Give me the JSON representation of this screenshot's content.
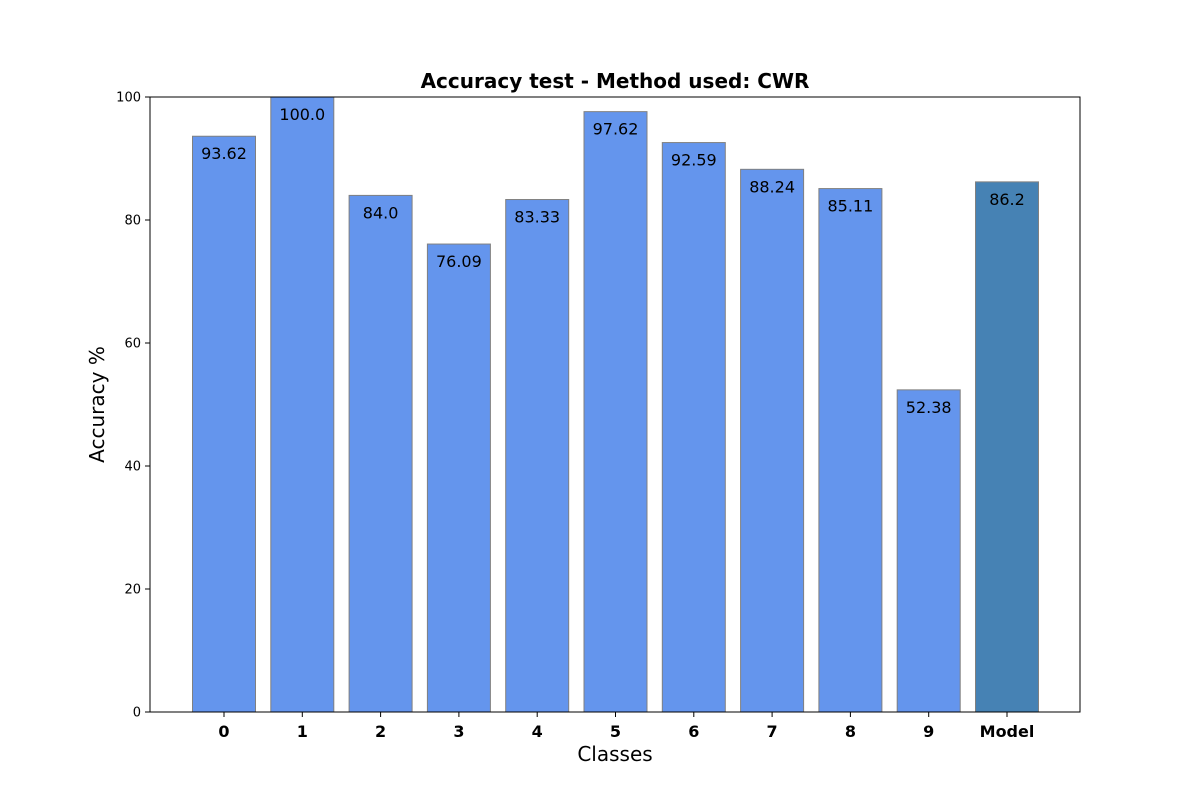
{
  "chart_data": {
    "type": "bar",
    "title": "Accuracy test - Method used: CWR",
    "xlabel": "Classes",
    "ylabel": "Accuracy %",
    "categories": [
      "0",
      "1",
      "2",
      "3",
      "4",
      "5",
      "6",
      "7",
      "8",
      "9",
      "Model"
    ],
    "values": [
      93.62,
      100.0,
      84.0,
      76.09,
      83.33,
      97.62,
      92.59,
      88.24,
      85.11,
      52.38,
      86.2
    ],
    "value_labels": [
      "93.62",
      "100.0",
      "84.0",
      "76.09",
      "83.33",
      "97.62",
      "92.59",
      "88.24",
      "85.11",
      "52.38",
      "86.2"
    ],
    "ylim": [
      0,
      100
    ],
    "yticks": [
      0,
      20,
      40,
      60,
      80,
      100
    ],
    "ytick_labels": [
      "0",
      "20",
      "40",
      "60",
      "80",
      "100"
    ],
    "grid": false,
    "colors": {
      "class_bar": "#6495ED",
      "model_bar": "#4682B4",
      "bar_edge": "#808080"
    }
  }
}
